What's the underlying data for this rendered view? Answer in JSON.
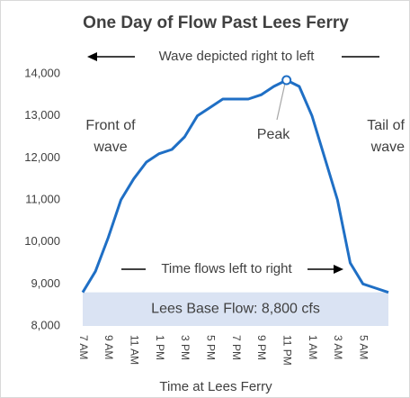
{
  "chart_data": {
    "type": "line",
    "title": "One Day of Flow Past Lees Ferry",
    "x_label": "Time at Lees Ferry",
    "categories": [
      "7 AM",
      null,
      "9 AM",
      null,
      "11 AM",
      null,
      "1 PM",
      null,
      "3 PM",
      null,
      "5 PM",
      null,
      "7 PM",
      null,
      "9 PM",
      null,
      "11 PM",
      null,
      "1 AM",
      null,
      "3 AM",
      null,
      "5 AM",
      null,
      null
    ],
    "series": [
      {
        "color": "#1f6fc5",
        "values": [
          8800,
          9300,
          10100,
          11000,
          11500,
          11900,
          12100,
          12200,
          12500,
          13000,
          13200,
          13400,
          13400,
          13400,
          13500,
          13700,
          13850,
          13700,
          13000,
          12000,
          11000,
          9500,
          9000,
          8900,
          8800
        ]
      }
    ],
    "ylim": [
      8000,
      14000
    ],
    "yticks": [
      {
        "value": 8000,
        "label": "8,000"
      },
      {
        "value": 9000,
        "label": "9,000"
      },
      {
        "value": 10000,
        "label": "10,000"
      },
      {
        "value": 11000,
        "label": "11,000"
      },
      {
        "value": 12000,
        "label": "12,000"
      },
      {
        "value": 13000,
        "label": "13,000"
      },
      {
        "value": 14000,
        "label": "14,000"
      }
    ],
    "base_flow": 8800,
    "base_flow_label": "Lees Base Flow: 8,800 cfs",
    "base_flow_color": "#dae3f3",
    "annotations": {
      "wave_direction": "Wave depicted right to left",
      "time_direction": "Time flows left to right",
      "front": [
        "Front of",
        "wave"
      ],
      "tail": [
        "Tail of",
        "wave"
      ],
      "peak": "Peak",
      "peak_index": 16
    }
  }
}
